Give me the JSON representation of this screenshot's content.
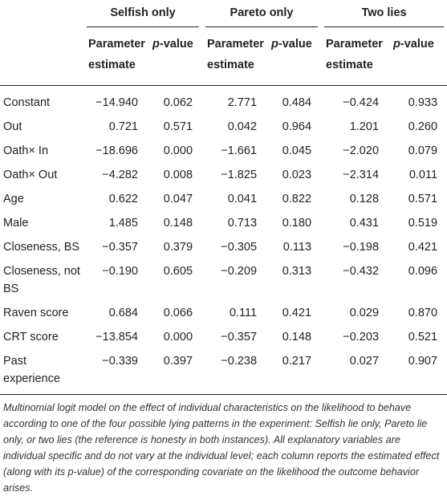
{
  "table": {
    "groups": [
      "Selfish only",
      "Pareto only",
      "Two lies"
    ],
    "subheaders": [
      "Parameter estimate",
      "p-value",
      "Parameter estimate",
      "p-value",
      "Parameter estimate",
      "p-value"
    ],
    "rows": [
      {
        "label": "Constant",
        "values": [
          "−14.940",
          "0.062",
          "2.771",
          "0.484",
          "−0.424",
          "0.933"
        ]
      },
      {
        "label": "Out",
        "values": [
          "0.721",
          "0.571",
          "0.042",
          "0.964",
          "1.201",
          "0.260"
        ]
      },
      {
        "label": "Oath× In",
        "values": [
          "−18.696",
          "0.000",
          "−1.661",
          "0.045",
          "−2.020",
          "0.079"
        ]
      },
      {
        "label": "Oath× Out",
        "values": [
          "−4.282",
          "0.008",
          "−1.825",
          "0.023",
          "−2.314",
          "0.011"
        ]
      },
      {
        "label": "Age",
        "values": [
          "0.622",
          "0.047",
          "0.041",
          "0.822",
          "0.128",
          "0.571"
        ]
      },
      {
        "label": "Male",
        "values": [
          "1.485",
          "0.148",
          "0.713",
          "0.180",
          "0.431",
          "0.519"
        ]
      },
      {
        "label": "Closeness, BS",
        "values": [
          "−0.357",
          "0.379",
          "−0.305",
          "0.113",
          "−0.198",
          "0.421"
        ]
      },
      {
        "label": "Closeness, not BS",
        "values": [
          "−0.190",
          "0.605",
          "−0.209",
          "0.313",
          "−0.432",
          "0.096"
        ]
      },
      {
        "label": "Raven score",
        "values": [
          "0.684",
          "0.066",
          "0.111",
          "0.421",
          "0.029",
          "0.870"
        ]
      },
      {
        "label": "CRT score",
        "values": [
          "−13.854",
          "0.000",
          "−0.357",
          "0.148",
          "−0.203",
          "0.521"
        ]
      },
      {
        "label": "Past experience",
        "values": [
          "−0.339",
          "0.397",
          "−0.238",
          "0.217",
          "0.027",
          "0.907"
        ]
      }
    ],
    "note": "Multinomial logit model on the effect of individual characteristics on the likelihood to behave according to one of the four possible lying patterns in the experiment: Selfish lie only, Pareto lie only, or two lies (the reference is honesty in both instances). All explanatory variables are individual specific and do not vary at the individual level; each column reports the estimated effect (along with its p-value) of the corresponding covariate on the likelihood the outcome behavior arises."
  }
}
